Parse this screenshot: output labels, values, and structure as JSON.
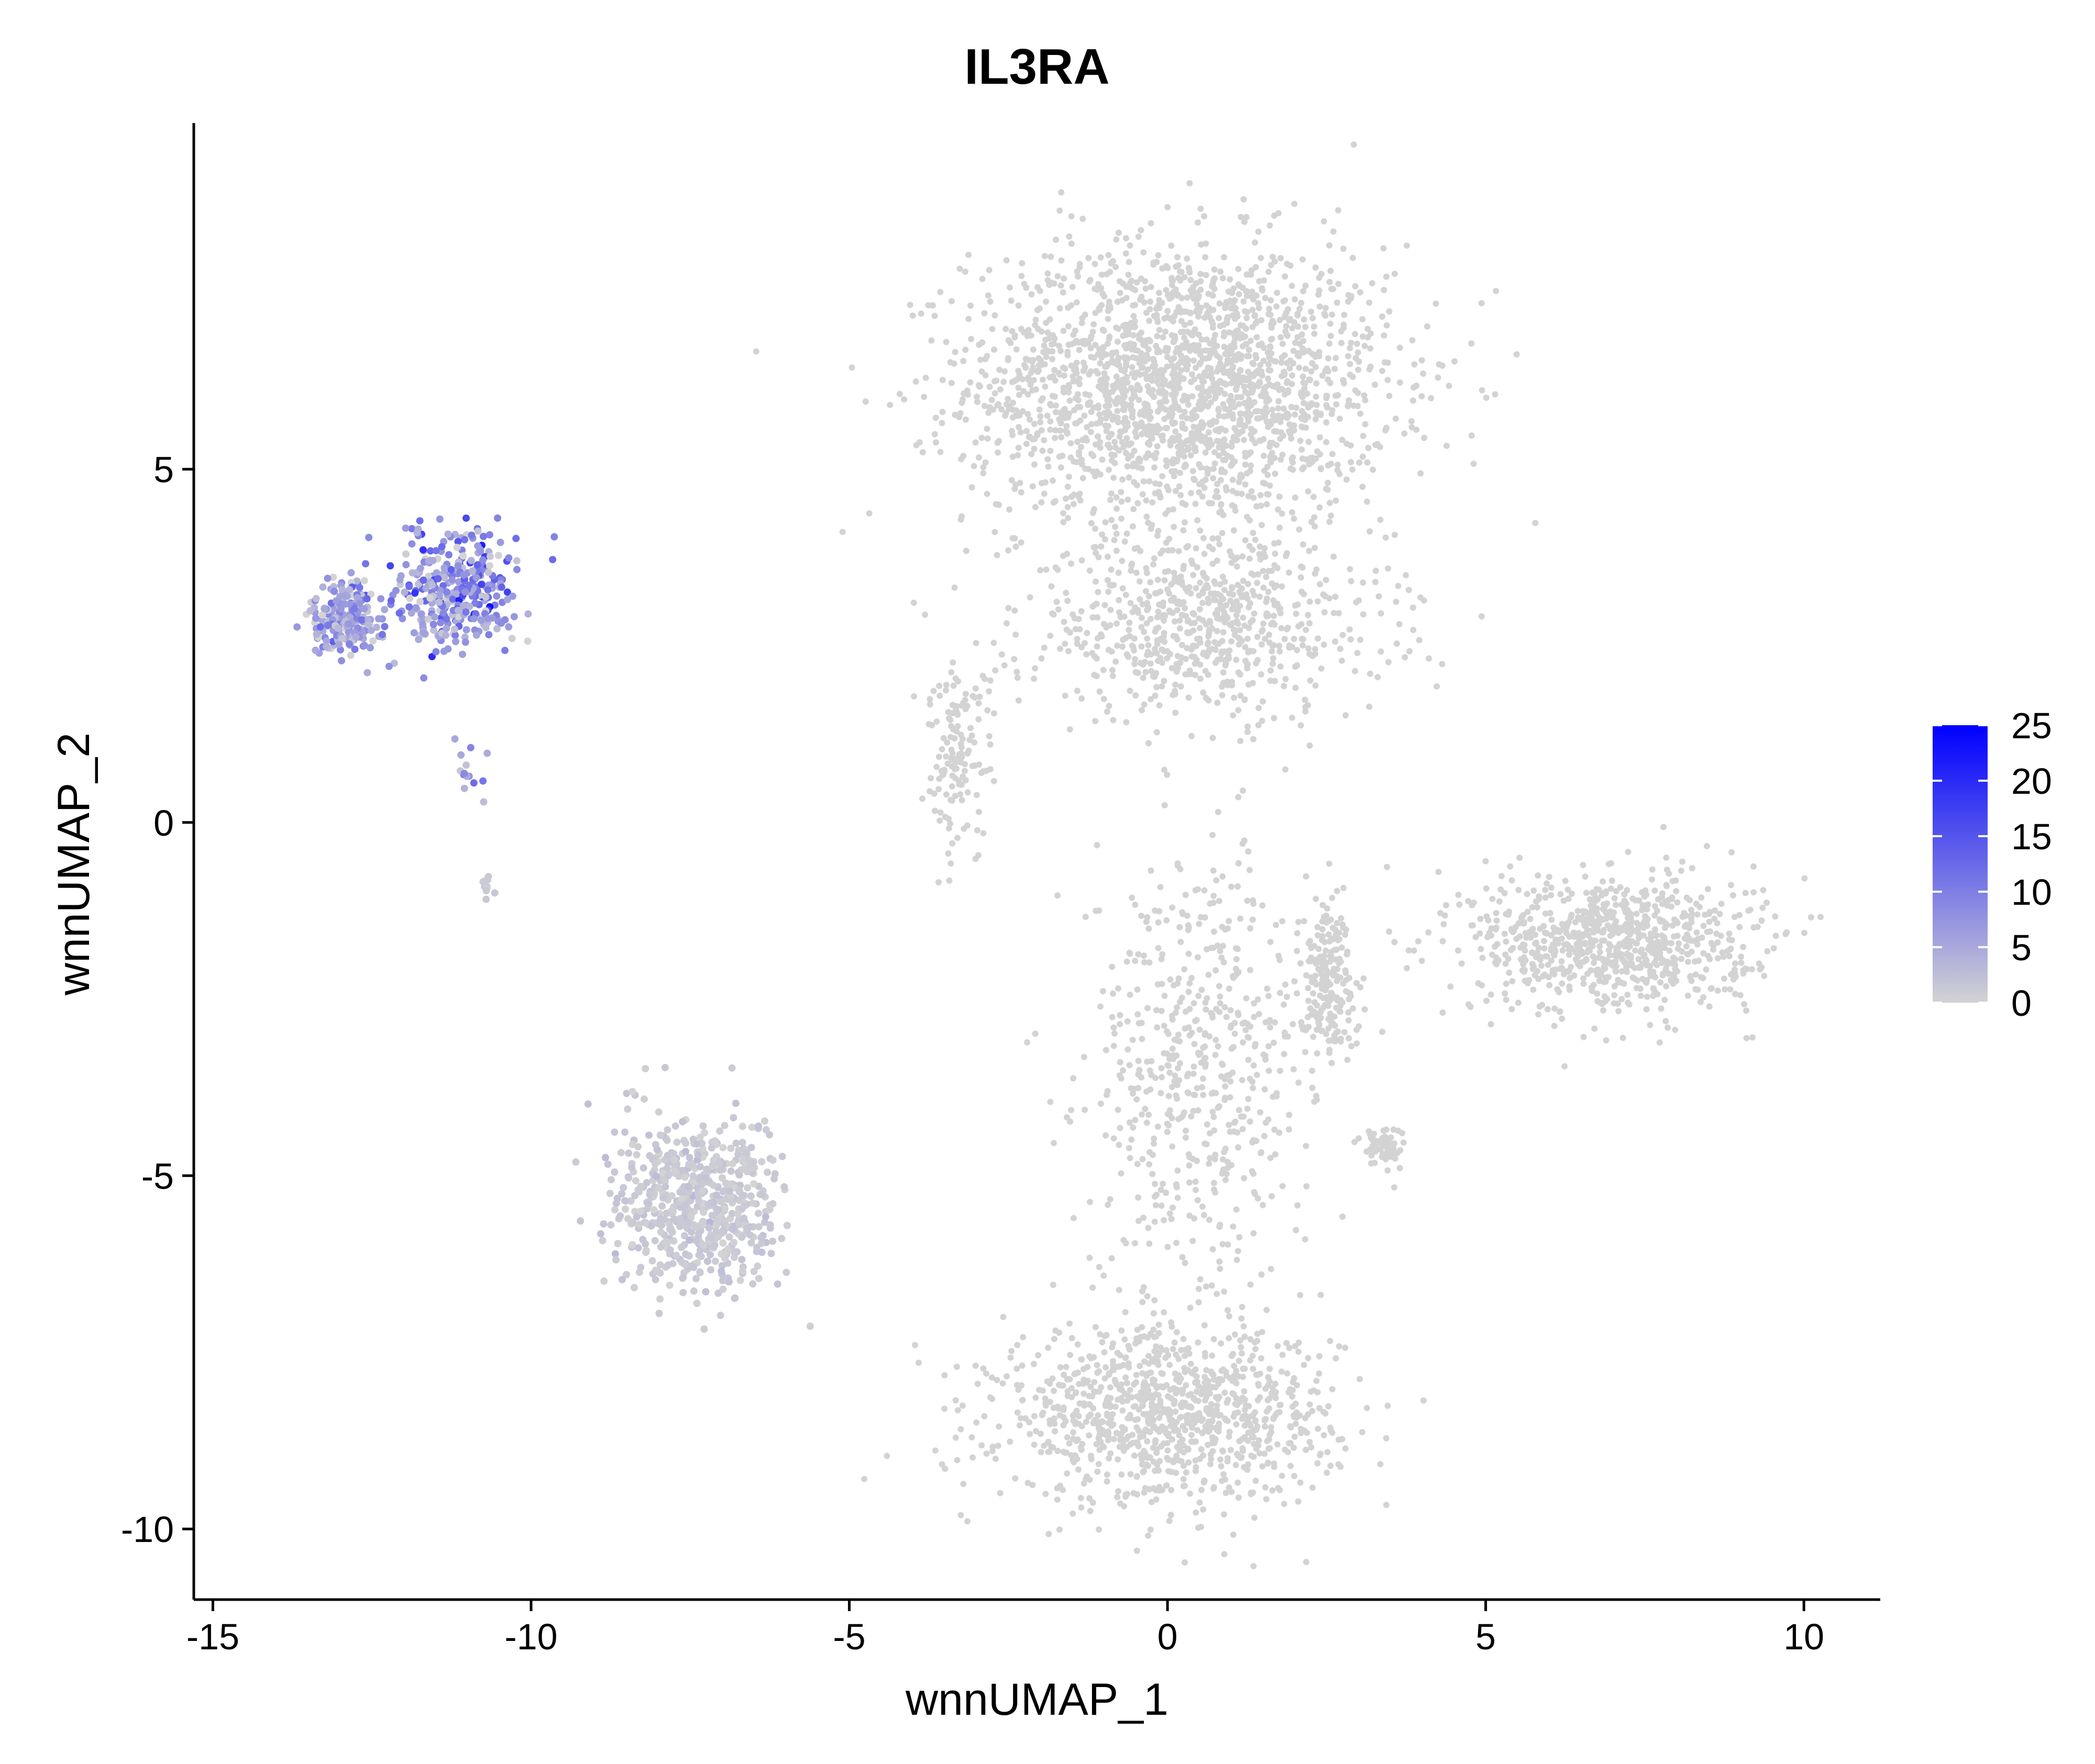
{
  "chart_data": {
    "type": "scatter",
    "title": "IL3RA",
    "xlabel": "wnnUMAP_1",
    "ylabel": "wnnUMAP_2",
    "xlim": [
      -15.3,
      11.2
    ],
    "ylim": [
      -11.0,
      9.9
    ],
    "x_ticks": [
      -15,
      -10,
      -5,
      0,
      5,
      10
    ],
    "x_tick_labels": [
      "-15",
      "-10",
      "-5",
      "0",
      "5",
      "10"
    ],
    "y_ticks": [
      -10,
      -5,
      0,
      5
    ],
    "y_tick_labels": [
      "-10",
      "-5",
      "0",
      "5"
    ],
    "grid": false,
    "legend_position": "right",
    "color_scale": {
      "low": "#d3d3d3",
      "high": "#0000ff",
      "range": [
        0,
        25
      ],
      "ticks": [
        0,
        5,
        10,
        15,
        20,
        25
      ],
      "tick_labels": [
        "0",
        "5",
        "10",
        "15",
        "20",
        "25"
      ]
    },
    "clusters": [
      {
        "cx": 0.2,
        "cy": 6.2,
        "sx": 3.0,
        "sy": 1.8,
        "value": 0,
        "weight": 0.3
      },
      {
        "cx": 0.6,
        "cy": 2.8,
        "sx": 2.6,
        "sy": 1.2,
        "value": 0,
        "weight": 0.1
      },
      {
        "cx": 0.0,
        "cy": -8.4,
        "sx": 2.4,
        "sy": 1.1,
        "value": 0,
        "weight": 0.15
      },
      {
        "cx": 0.5,
        "cy": -3.5,
        "sx": 1.6,
        "sy": 2.8,
        "value": 0,
        "weight": 0.08
      },
      {
        "cx": 7.0,
        "cy": -1.7,
        "sx": 2.0,
        "sy": 0.9,
        "value": 0,
        "weight": 0.12
      },
      {
        "cx": 2.5,
        "cy": -2.2,
        "sx": 0.4,
        "sy": 1.0,
        "value": 0,
        "weight": 0.03
      },
      {
        "cx": 3.4,
        "cy": -4.6,
        "sx": 0.3,
        "sy": 0.3,
        "value": 0,
        "weight": 0.01
      },
      {
        "cx": -3.3,
        "cy": 1.0,
        "sx": 0.5,
        "sy": 1.2,
        "value": 0,
        "weight": 0.02
      },
      {
        "cx": -7.4,
        "cy": -5.4,
        "sx": 1.2,
        "sy": 1.1,
        "value": 1,
        "weight": 0.09
      },
      {
        "cx": -11.2,
        "cy": 3.3,
        "sx": 0.9,
        "sy": 0.7,
        "value": 8,
        "weight": 0.05
      },
      {
        "cx": -12.9,
        "cy": 2.9,
        "sx": 0.5,
        "sy": 0.5,
        "value": 6,
        "weight": 0.03
      },
      {
        "cx": -10.9,
        "cy": 0.6,
        "sx": 0.4,
        "sy": 0.4,
        "value": 6,
        "weight": 0.002
      },
      {
        "cx": -10.7,
        "cy": -0.9,
        "sx": 0.1,
        "sy": 0.2,
        "value": 1,
        "weight": 0.001
      }
    ]
  }
}
